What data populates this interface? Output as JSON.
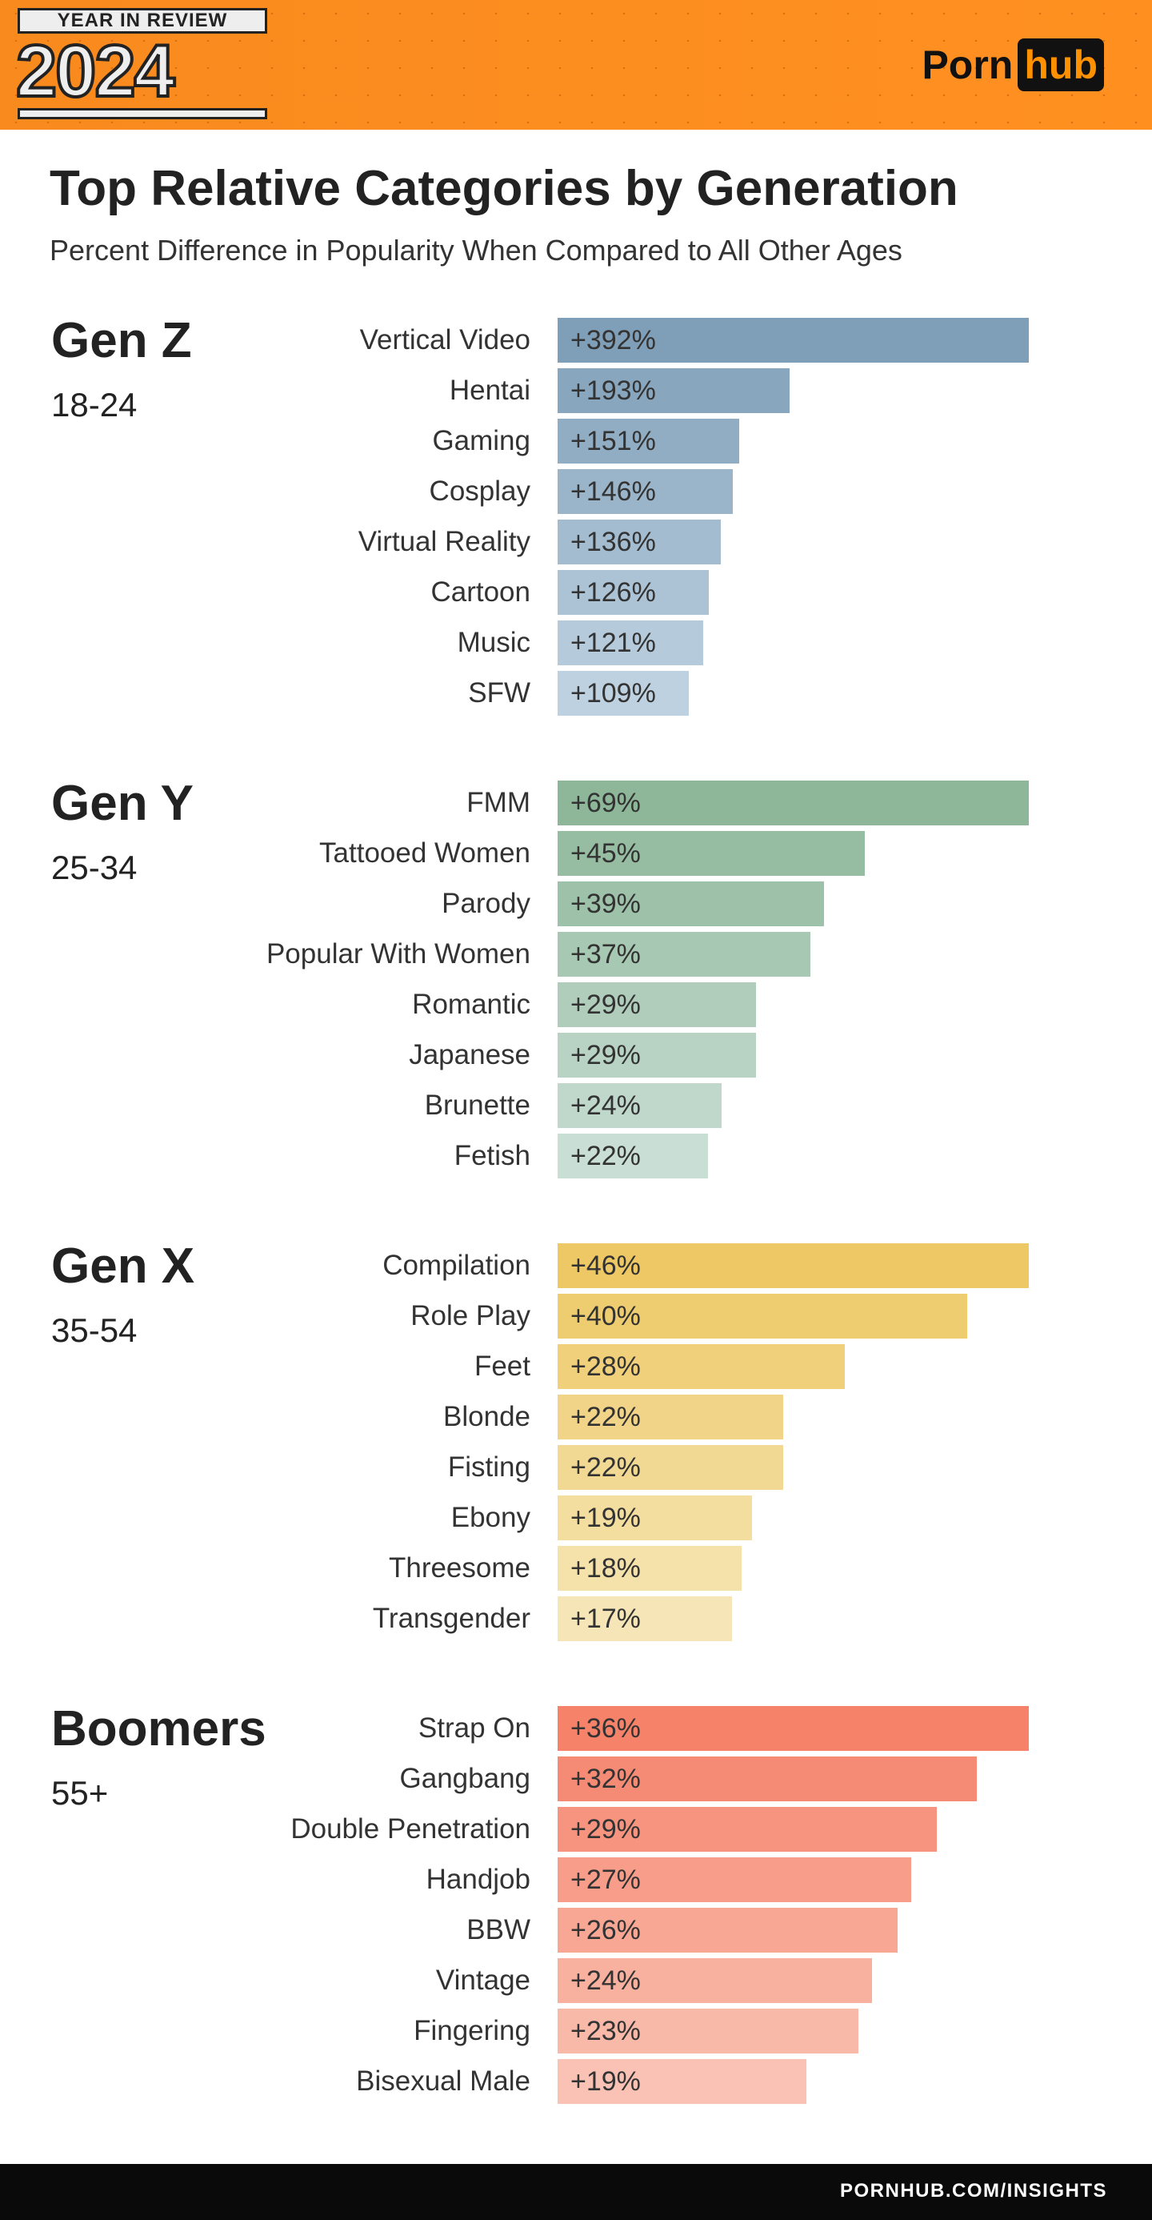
{
  "header": {
    "badge_top": "YEAR IN REVIEW",
    "badge_year": "2024",
    "logo_left": "Porn",
    "logo_right": "hub"
  },
  "footer": {
    "url": "PORNHUB.COM/INSIGHTS"
  },
  "chart_data": {
    "type": "bar",
    "orientation": "horizontal",
    "title": "Top Relative Categories by Generation",
    "subtitle": "Percent Difference in Popularity When Compared to All Other Ages",
    "unit": "%",
    "groups": [
      {
        "name": "Gen Z",
        "ages": "18-24",
        "color_start": "#7f9fb8",
        "color_end": "#bed1e0",
        "categories": [
          "Vertical Video",
          "Hentai",
          "Gaming",
          "Cosplay",
          "Virtual Reality",
          "Cartoon",
          "Music",
          "SFW"
        ],
        "values": [
          392,
          193,
          151,
          146,
          136,
          126,
          121,
          109
        ],
        "labels": [
          "+392%",
          "+193%",
          "+151%",
          "+146%",
          "+136%",
          "+126%",
          "+121%",
          "+109%"
        ]
      },
      {
        "name": "Gen Y",
        "ages": "25-34",
        "color_start": "#8db798",
        "color_end": "#c9ded4",
        "categories": [
          "FMM",
          "Tattooed Women",
          "Parody",
          "Popular With Women",
          "Romantic",
          "Japanese",
          "Brunette",
          "Fetish"
        ],
        "values": [
          69,
          45,
          39,
          37,
          29,
          29,
          24,
          22
        ],
        "labels": [
          "+69%",
          "+45%",
          "+39%",
          "+37%",
          "+29%",
          "+29%",
          "+24%",
          "+22%"
        ]
      },
      {
        "name": "Gen X",
        "ages": "35-54",
        "color_start": "#edc864",
        "color_end": "#f6e5b6",
        "categories": [
          "Compilation",
          "Role Play",
          "Feet",
          "Blonde",
          "Fisting",
          "Ebony",
          "Threesome",
          "Transgender"
        ],
        "values": [
          46,
          40,
          28,
          22,
          22,
          19,
          18,
          17
        ],
        "labels": [
          "+46%",
          "+40%",
          "+28%",
          "+22%",
          "+22%",
          "+19%",
          "+18%",
          "+17%"
        ]
      },
      {
        "name": "Boomers",
        "ages": "55+",
        "color_start": "#f6826a",
        "color_end": "#f9c2b4",
        "categories": [
          "Strap On",
          "Gangbang",
          "Double Penetration",
          "Handjob",
          "BBW",
          "Vintage",
          "Fingering",
          "Bisexual Male"
        ],
        "values": [
          36,
          32,
          29,
          27,
          26,
          24,
          23,
          19
        ],
        "labels": [
          "+36%",
          "+32%",
          "+29%",
          "+27%",
          "+26%",
          "+24%",
          "+23%",
          "+19%"
        ]
      }
    ]
  }
}
